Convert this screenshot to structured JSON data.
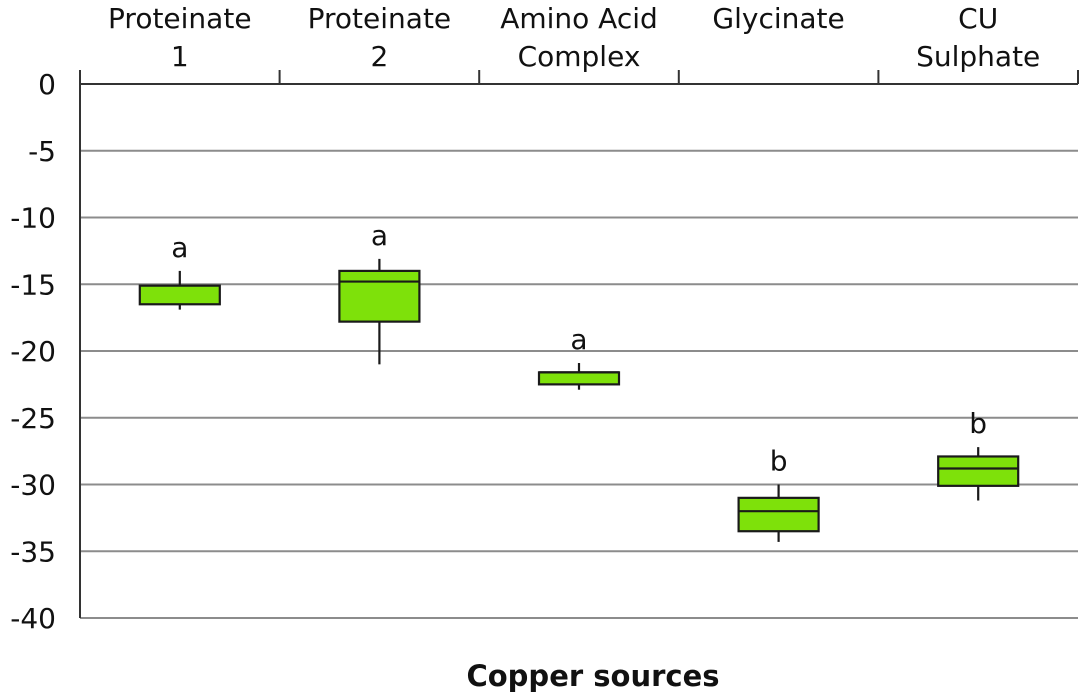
{
  "chart_data": {
    "type": "box",
    "xlabel": "Copper sources",
    "ylabel": "",
    "ylim": [
      -40,
      0
    ],
    "yticks": [
      0,
      -5,
      -10,
      -15,
      -20,
      -25,
      -30,
      -35,
      -40
    ],
    "x_axis_position": "top",
    "grid": true,
    "box_color": "#7ee10a",
    "categories": [
      [
        "Proteinate",
        "1"
      ],
      [
        "Proteinate",
        "2"
      ],
      [
        "Amino Acid",
        "Complex"
      ],
      [
        "Glycinate"
      ],
      [
        "CU",
        "Sulphate"
      ]
    ],
    "series": [
      {
        "boxes": [
          {
            "whisker_high": -14.0,
            "q3": -15.1,
            "median": -15.1,
            "q1": -16.5,
            "whisker_low": -16.9,
            "letter": "a"
          },
          {
            "whisker_high": -13.1,
            "q3": -14.0,
            "median": -14.8,
            "q1": -17.8,
            "whisker_low": -21.0,
            "letter": "a"
          },
          {
            "whisker_high": -20.9,
            "q3": -21.6,
            "median": -21.6,
            "q1": -22.5,
            "whisker_low": -22.9,
            "letter": "a"
          },
          {
            "whisker_high": -30.0,
            "q3": -31.0,
            "median": -32.0,
            "q1": -33.5,
            "whisker_low": -34.3,
            "letter": "b"
          },
          {
            "whisker_high": -27.2,
            "q3": -27.9,
            "median": -28.8,
            "q1": -30.1,
            "whisker_low": -31.2,
            "letter": "b"
          }
        ]
      }
    ]
  }
}
